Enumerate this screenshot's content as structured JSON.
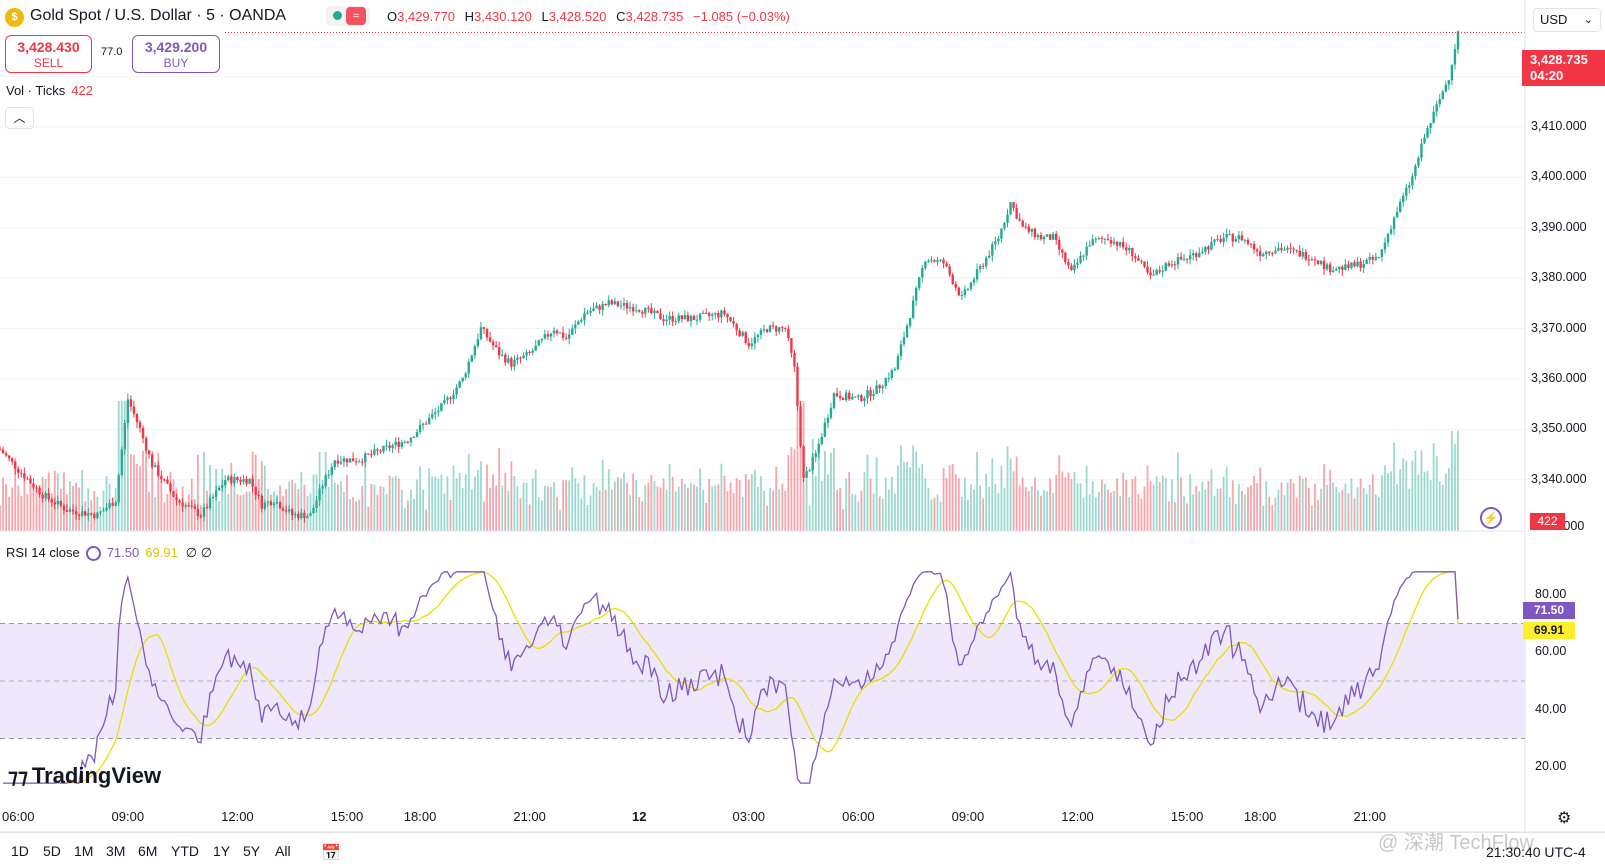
{
  "header": {
    "symbol_title": "Gold Spot / U.S. Dollar · 5 · OANDA",
    "ohlc": [
      {
        "key": "O",
        "value": "3,429.770"
      },
      {
        "key": "H",
        "value": "3,430.120"
      },
      {
        "key": "L",
        "value": "3,428.520"
      },
      {
        "key": "C",
        "value": "3,428.735"
      }
    ],
    "change": "−1.085 (−0.03%)",
    "currency": "USD"
  },
  "trade": {
    "sell_price": "3,428.430",
    "sell_label": "SELL",
    "spread": "77.0",
    "buy_price": "3,429.200",
    "buy_label": "BUY"
  },
  "volume_legend": {
    "label": "Vol · Ticks",
    "value": "422"
  },
  "rsi_legend": {
    "label": "RSI 14 close",
    "rsi": "71.50",
    "ma": "69.91",
    "extra": "∅ ∅"
  },
  "price_tag": {
    "price": "3,428.735",
    "countdown": "04:20"
  },
  "volume_tag": "422",
  "rsi_tags": {
    "rsi": "71.50",
    "ma": "69.91"
  },
  "price_axis_labels": [
    "3,420.000",
    "3,410.000",
    "3,400.000",
    "3,390.000",
    "3,380.000",
    "3,370.000",
    "3,360.000",
    "3,350.000",
    "3,340.000",
    "0.000"
  ],
  "rsi_axis_labels": [
    "80.00",
    "60.00",
    "40.00",
    "20.00"
  ],
  "time_axis_labels": [
    "06:00",
    "09:00",
    "12:00",
    "15:00",
    "18:00",
    "21:00",
    "12",
    "03:00",
    "06:00",
    "09:00",
    "12:00",
    "15:00",
    "18:00",
    "21:00"
  ],
  "timeframes": [
    "1D",
    "5D",
    "1M",
    "3M",
    "6M",
    "YTD",
    "1Y",
    "5Y",
    "All"
  ],
  "clock": "21:30:40 UTC-4",
  "brand": "TradingView",
  "watermark": "@ 深潮 TechFlow",
  "colors": {
    "up": "#22ab94",
    "down": "#f23645",
    "rsi": "#7e57c2",
    "rsi_ma": "#e8e000",
    "band": "#efe7fb"
  },
  "chart_data": {
    "type": "candlestick",
    "interval": "5",
    "symbol": "Gold Spot / U.S. Dollar",
    "price_range": [
      3333,
      3432
    ],
    "price_keypoints": [
      [
        "05:30",
        3346
      ],
      [
        "06:00",
        3342
      ],
      [
        "06:40",
        3337
      ],
      [
        "07:20",
        3334
      ],
      [
        "08:10",
        3333
      ],
      [
        "08:40",
        3336
      ],
      [
        "09:00",
        3356
      ],
      [
        "09:20",
        3350
      ],
      [
        "09:40",
        3343
      ],
      [
        "10:20",
        3336
      ],
      [
        "11:00",
        3333
      ],
      [
        "11:40",
        3340
      ],
      [
        "12:20",
        3340
      ],
      [
        "12:40",
        3335
      ],
      [
        "13:00",
        3336
      ],
      [
        "13:30",
        3333
      ],
      [
        "14:00",
        3333
      ],
      [
        "14:20",
        3339
      ],
      [
        "14:40",
        3344
      ],
      [
        "15:20",
        3344
      ],
      [
        "16:00",
        3346
      ],
      [
        "16:40",
        3348
      ],
      [
        "17:40",
        3355
      ],
      [
        "18:10",
        3360
      ],
      [
        "18:40",
        3370
      ],
      [
        "19:10",
        3365
      ],
      [
        "19:30",
        3363
      ],
      [
        "20:00",
        3365
      ],
      [
        "20:40",
        3370
      ],
      [
        "21:00",
        3368
      ],
      [
        "21:30",
        3373
      ],
      [
        "22:10",
        3375
      ],
      [
        "23:00",
        3374
      ],
      [
        "23:40",
        3372
      ],
      [
        "00:30",
        3372
      ],
      [
        "01:20",
        3373
      ],
      [
        "02:00",
        3367
      ],
      [
        "02:30",
        3370
      ],
      [
        "03:00",
        3370
      ],
      [
        "03:15",
        3362
      ],
      [
        "03:30",
        3340
      ],
      [
        "03:50",
        3345
      ],
      [
        "04:20",
        3357
      ],
      [
        "05:00",
        3356
      ],
      [
        "05:30",
        3358
      ],
      [
        "06:00",
        3362
      ],
      [
        "06:30",
        3375
      ],
      [
        "06:50",
        3384
      ],
      [
        "07:20",
        3383
      ],
      [
        "07:50",
        3376
      ],
      [
        "08:20",
        3382
      ],
      [
        "08:50",
        3388
      ],
      [
        "09:10",
        3395
      ],
      [
        "09:30",
        3390
      ],
      [
        "10:00",
        3388
      ],
      [
        "10:20",
        3388
      ],
      [
        "10:50",
        3381
      ],
      [
        "11:20",
        3387
      ],
      [
        "11:50",
        3388
      ],
      [
        "12:30",
        3385
      ],
      [
        "13:00",
        3380
      ],
      [
        "13:30",
        3383
      ],
      [
        "14:00",
        3384
      ],
      [
        "14:30",
        3386
      ],
      [
        "15:00",
        3388
      ],
      [
        "15:30",
        3388
      ],
      [
        "16:00",
        3385
      ],
      [
        "16:30",
        3386
      ],
      [
        "17:30",
        3384
      ],
      [
        "17:50",
        3382
      ],
      [
        "18:20",
        3382
      ],
      [
        "18:50",
        3383
      ],
      [
        "19:15",
        3384
      ],
      [
        "19:40",
        3392
      ],
      [
        "20:10",
        3400
      ],
      [
        "20:30",
        3408
      ],
      [
        "20:50",
        3414
      ],
      [
        "21:10",
        3420
      ],
      [
        "21:25",
        3428.7
      ]
    ],
    "last_close": 3428.735,
    "volume_last": 422,
    "rsi": {
      "length": 14,
      "source": "close",
      "last": 71.5,
      "ma_last": 69.91,
      "overbought": 70,
      "midline": 50,
      "oversold": 30,
      "range": [
        10,
        90
      ],
      "min": 14.5,
      "max": 88
    }
  }
}
